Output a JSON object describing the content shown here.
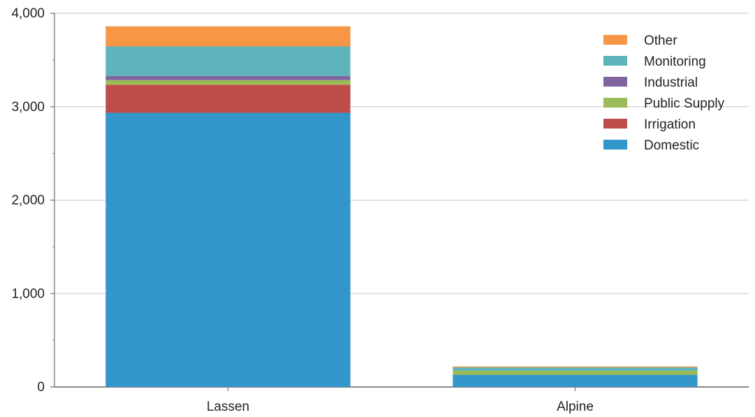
{
  "chart_data": {
    "type": "bar",
    "stacked": true,
    "title": "",
    "xlabel": "",
    "ylabel": "",
    "categories": [
      "Lassen",
      "Alpine"
    ],
    "ylim": [
      0,
      4000
    ],
    "yticks": [
      0,
      1000,
      2000,
      3000,
      4000
    ],
    "ytick_labels": [
      "0",
      "1,000",
      "2,000",
      "3,000",
      "4,000"
    ],
    "grid": true,
    "legend_position": "top-right",
    "series": [
      {
        "name": "Domestic",
        "values": [
          2935,
          130
        ],
        "color": "#3296CA"
      },
      {
        "name": "Irrigation",
        "values": [
          300,
          0
        ],
        "color": "#BE4D4A"
      },
      {
        "name": "Public Supply",
        "values": [
          50,
          45
        ],
        "color": "#9BBB59"
      },
      {
        "name": "Industrial",
        "values": [
          45,
          0
        ],
        "color": "#8064A2"
      },
      {
        "name": "Monitoring",
        "values": [
          315,
          35
        ],
        "color": "#5FB4BC"
      },
      {
        "name": "Other",
        "values": [
          215,
          10
        ],
        "color": "#F79646"
      }
    ]
  }
}
